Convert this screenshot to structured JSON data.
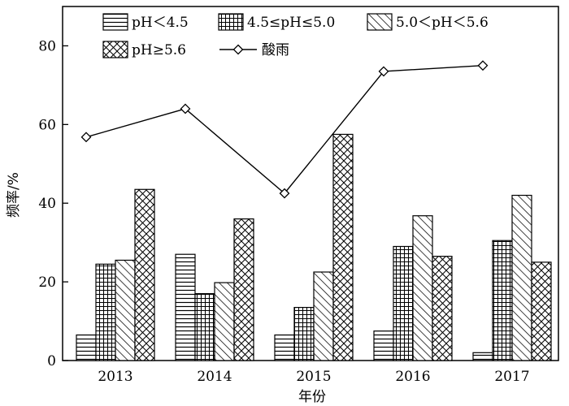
{
  "chart_data": {
    "type": "bar",
    "categories": [
      "2013",
      "2014",
      "2015",
      "2016",
      "2017"
    ],
    "series": [
      {
        "name": "pH＜4.5",
        "pattern": "horizontal-lines",
        "values": [
          6.5,
          27.0,
          6.5,
          7.5,
          2.0
        ]
      },
      {
        "name": "4.5≤pH≤5.0",
        "pattern": "grid",
        "values": [
          24.5,
          17.0,
          13.5,
          29.0,
          30.5
        ]
      },
      {
        "name": "5.0＜pH＜5.6",
        "pattern": "diagonal-lines",
        "values": [
          25.5,
          19.8,
          22.5,
          36.8,
          42.0
        ]
      },
      {
        "name": "pH≥5.6",
        "pattern": "crosshatch",
        "values": [
          43.5,
          36.0,
          57.5,
          26.5,
          25.0
        ]
      }
    ],
    "line_series": {
      "name": "酸雨",
      "marker": "diamond",
      "values": [
        56.8,
        64.0,
        42.5,
        73.5,
        75.0
      ]
    },
    "xlabel": "年份",
    "ylabel": "频率/%",
    "ylim": [
      0,
      90
    ],
    "yticks": [
      "0",
      "20",
      "40",
      "60",
      "80"
    ],
    "ytick_values": [
      0,
      20,
      40,
      60,
      80
    ],
    "grid": false,
    "legend_position": "top"
  }
}
